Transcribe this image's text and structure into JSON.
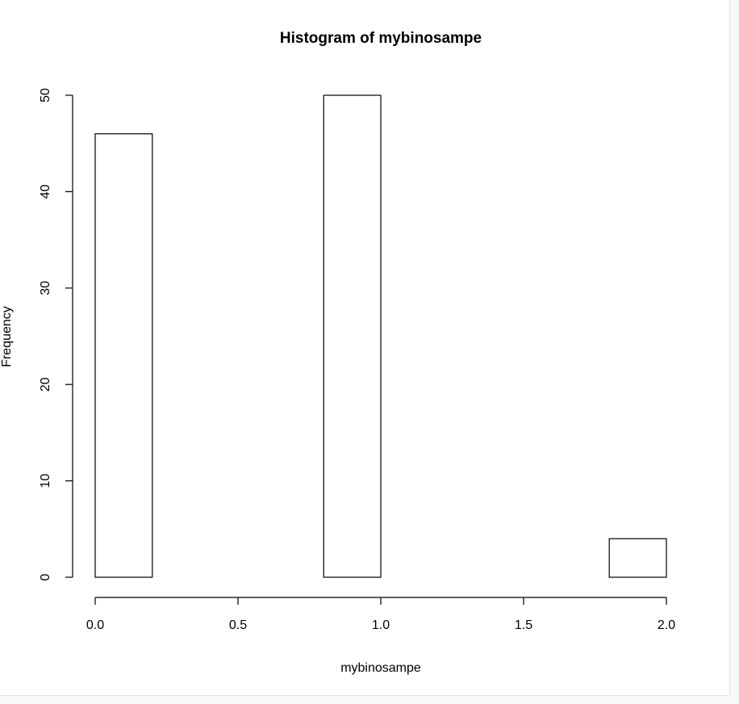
{
  "chart_data": {
    "type": "bar",
    "title": "Histogram of mybinosampe",
    "xlabel": "mybinosampe",
    "ylabel": "Frequency",
    "bins": [
      {
        "from": 0.0,
        "to": 0.2,
        "count": 46
      },
      {
        "from": 0.2,
        "to": 0.4,
        "count": 0
      },
      {
        "from": 0.4,
        "to": 0.6,
        "count": 0
      },
      {
        "from": 0.6,
        "to": 0.8,
        "count": 0
      },
      {
        "from": 0.8,
        "to": 1.0,
        "count": 50
      },
      {
        "from": 1.0,
        "to": 1.2,
        "count": 0
      },
      {
        "from": 1.2,
        "to": 1.4,
        "count": 0
      },
      {
        "from": 1.4,
        "to": 1.6,
        "count": 0
      },
      {
        "from": 1.6,
        "to": 1.8,
        "count": 0
      },
      {
        "from": 1.8,
        "to": 2.0,
        "count": 4
      }
    ],
    "xlim": [
      0,
      2
    ],
    "ylim": [
      0,
      50
    ],
    "x_ticks": [
      "0.0",
      "0.5",
      "1.0",
      "1.5",
      "2.0"
    ],
    "y_ticks": [
      "0",
      "10",
      "20",
      "30",
      "40",
      "50"
    ],
    "grid": false,
    "legend": "none",
    "colors": {
      "bar_fill": "#ffffff",
      "bar_stroke": "#000000",
      "axis": "#000000"
    }
  }
}
